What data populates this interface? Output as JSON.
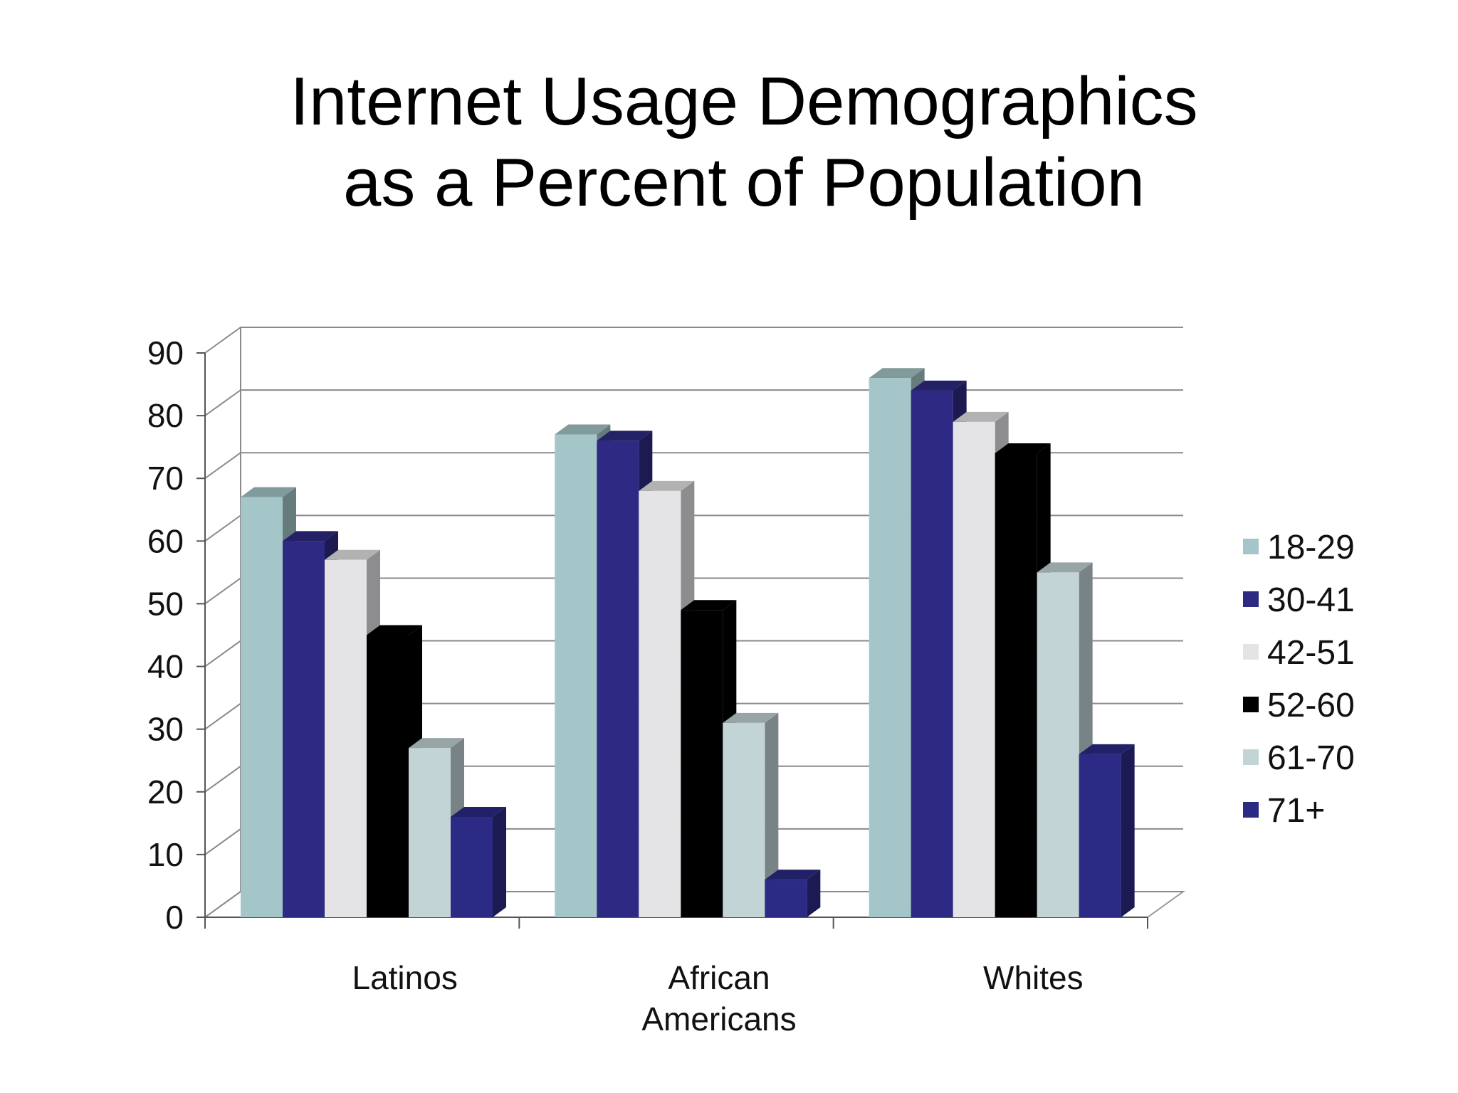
{
  "slide": {
    "title_line1": "Internet Usage Demographics",
    "title_line2": "as a Percent of Population"
  },
  "chart_data": {
    "type": "bar",
    "title": "Internet Usage Demographics as a Percent of Population",
    "categories": [
      "Latinos",
      "African Americans",
      "Whites"
    ],
    "category_label_lines": [
      [
        "Latinos"
      ],
      [
        "African",
        "Americans"
      ],
      [
        "Whites"
      ]
    ],
    "series": [
      {
        "name": "18-29",
        "values": [
          67,
          77,
          86
        ],
        "color": "#A5C6C8"
      },
      {
        "name": "30-41",
        "values": [
          60,
          76,
          84
        ],
        "color": "#2E2A84"
      },
      {
        "name": "42-51",
        "values": [
          57,
          68,
          79
        ],
        "color": "#E4E4E6"
      },
      {
        "name": "52-60",
        "values": [
          45,
          49,
          74
        ],
        "color": "#000000"
      },
      {
        "name": "61-70",
        "values": [
          27,
          31,
          55
        ],
        "color": "#C3D4D6"
      },
      {
        "name": "71+",
        "values": [
          16,
          6,
          26
        ],
        "color": "#2B2A85"
      }
    ],
    "ylim": [
      0,
      90
    ],
    "yticks": [
      0,
      10,
      20,
      30,
      40,
      50,
      60,
      70,
      80,
      90
    ],
    "grid": true,
    "style": "3d-clustered-column",
    "legend_position": "right"
  }
}
